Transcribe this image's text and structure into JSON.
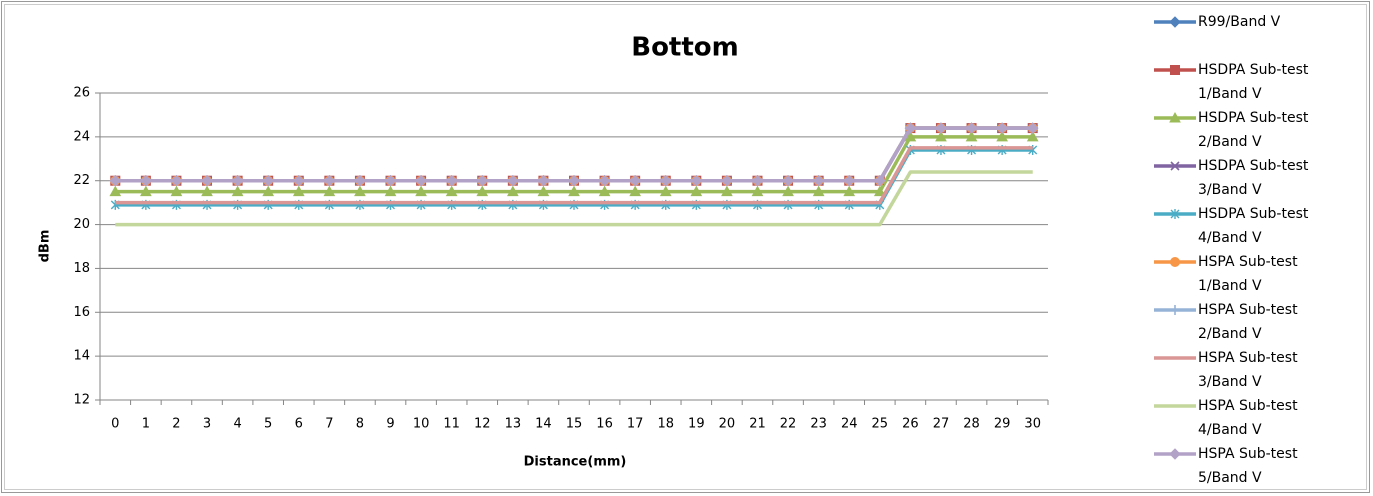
{
  "chart_data": {
    "type": "line",
    "title": "Bottom",
    "x_label": "Distance(mm)",
    "y_label": "dBm",
    "categories": [
      "0",
      "1",
      "2",
      "3",
      "4",
      "5",
      "6",
      "7",
      "8",
      "9",
      "10",
      "11",
      "12",
      "13",
      "14",
      "15",
      "16",
      "17",
      "18",
      "19",
      "20",
      "21",
      "22",
      "23",
      "24",
      "25",
      "26",
      "27",
      "28",
      "29",
      "30"
    ],
    "ylim": [
      12,
      26
    ],
    "yticks": [
      12,
      14,
      16,
      18,
      20,
      22,
      24,
      26
    ],
    "grid": true,
    "legend": "right",
    "series": [
      {
        "name": "R99/Band V",
        "color": "#4f81bd",
        "marker": "diamond",
        "values": [
          22,
          22,
          22,
          22,
          22,
          22,
          22,
          22,
          22,
          22,
          22,
          22,
          22,
          22,
          22,
          22,
          22,
          22,
          22,
          22,
          22,
          22,
          22,
          22,
          22,
          22,
          24.4,
          24.4,
          24.4,
          24.4,
          24.4
        ]
      },
      {
        "name": "HSDPA Sub-test 1/Band V",
        "color": "#c0504d",
        "marker": "square",
        "values": [
          22,
          22,
          22,
          22,
          22,
          22,
          22,
          22,
          22,
          22,
          22,
          22,
          22,
          22,
          22,
          22,
          22,
          22,
          22,
          22,
          22,
          22,
          22,
          22,
          22,
          22,
          24.4,
          24.4,
          24.4,
          24.4,
          24.4
        ]
      },
      {
        "name": "HSDPA Sub-test 2/Band V",
        "color": "#9bbb59",
        "marker": "triangle",
        "values": [
          21.5,
          21.5,
          21.5,
          21.5,
          21.5,
          21.5,
          21.5,
          21.5,
          21.5,
          21.5,
          21.5,
          21.5,
          21.5,
          21.5,
          21.5,
          21.5,
          21.5,
          21.5,
          21.5,
          21.5,
          21.5,
          21.5,
          21.5,
          21.5,
          21.5,
          21.5,
          24,
          24,
          24,
          24,
          24
        ]
      },
      {
        "name": "HSDPA Sub-test 3/Band V",
        "color": "#8064a2",
        "marker": "x",
        "values": [
          22,
          22,
          22,
          22,
          22,
          22,
          22,
          22,
          22,
          22,
          22,
          22,
          22,
          22,
          22,
          22,
          22,
          22,
          22,
          22,
          22,
          22,
          22,
          22,
          22,
          22,
          24.4,
          24.4,
          24.4,
          24.4,
          24.4
        ]
      },
      {
        "name": "HSDPA Sub-test 4/Band V",
        "color": "#4bacc6",
        "marker": "asterisk",
        "values": [
          20.9,
          20.9,
          20.9,
          20.9,
          20.9,
          20.9,
          20.9,
          20.9,
          20.9,
          20.9,
          20.9,
          20.9,
          20.9,
          20.9,
          20.9,
          20.9,
          20.9,
          20.9,
          20.9,
          20.9,
          20.9,
          20.9,
          20.9,
          20.9,
          20.9,
          20.9,
          23.4,
          23.4,
          23.4,
          23.4,
          23.4
        ]
      },
      {
        "name": "HSPA Sub-test 1/Band V",
        "color": "#f79646",
        "marker": "circle",
        "values": [
          22,
          22,
          22,
          22,
          22,
          22,
          22,
          22,
          22,
          22,
          22,
          22,
          22,
          22,
          22,
          22,
          22,
          22,
          22,
          22,
          22,
          22,
          22,
          22,
          22,
          22,
          24.4,
          24.4,
          24.4,
          24.4,
          24.4
        ]
      },
      {
        "name": "HSPA Sub-test 2/Band V",
        "color": "#95b3d7",
        "marker": "plus",
        "values": [
          22,
          22,
          22,
          22,
          22,
          22,
          22,
          22,
          22,
          22,
          22,
          22,
          22,
          22,
          22,
          22,
          22,
          22,
          22,
          22,
          22,
          22,
          22,
          22,
          22,
          22,
          24.4,
          24.4,
          24.4,
          24.4,
          24.4
        ]
      },
      {
        "name": "HSPA Sub-test 3/Band V",
        "color": "#d99694",
        "marker": "none",
        "values": [
          21,
          21,
          21,
          21,
          21,
          21,
          21,
          21,
          21,
          21,
          21,
          21,
          21,
          21,
          21,
          21,
          21,
          21,
          21,
          21,
          21,
          21,
          21,
          21,
          21,
          21,
          23.5,
          23.5,
          23.5,
          23.5,
          23.5
        ]
      },
      {
        "name": "HSPA Sub-test 4/Band V",
        "color": "#c3d69b",
        "marker": "none",
        "values": [
          20,
          20,
          20,
          20,
          20,
          20,
          20,
          20,
          20,
          20,
          20,
          20,
          20,
          20,
          20,
          20,
          20,
          20,
          20,
          20,
          20,
          20,
          20,
          20,
          20,
          20,
          22.4,
          22.4,
          22.4,
          22.4,
          22.4
        ]
      },
      {
        "name": "HSPA Sub-test 5/Band V",
        "color": "#b3a2c7",
        "marker": "diamond",
        "values": [
          22,
          22,
          22,
          22,
          22,
          22,
          22,
          22,
          22,
          22,
          22,
          22,
          22,
          22,
          22,
          22,
          22,
          22,
          22,
          22,
          22,
          22,
          22,
          22,
          22,
          22,
          24.4,
          24.4,
          24.4,
          24.4,
          24.4
        ]
      }
    ]
  }
}
